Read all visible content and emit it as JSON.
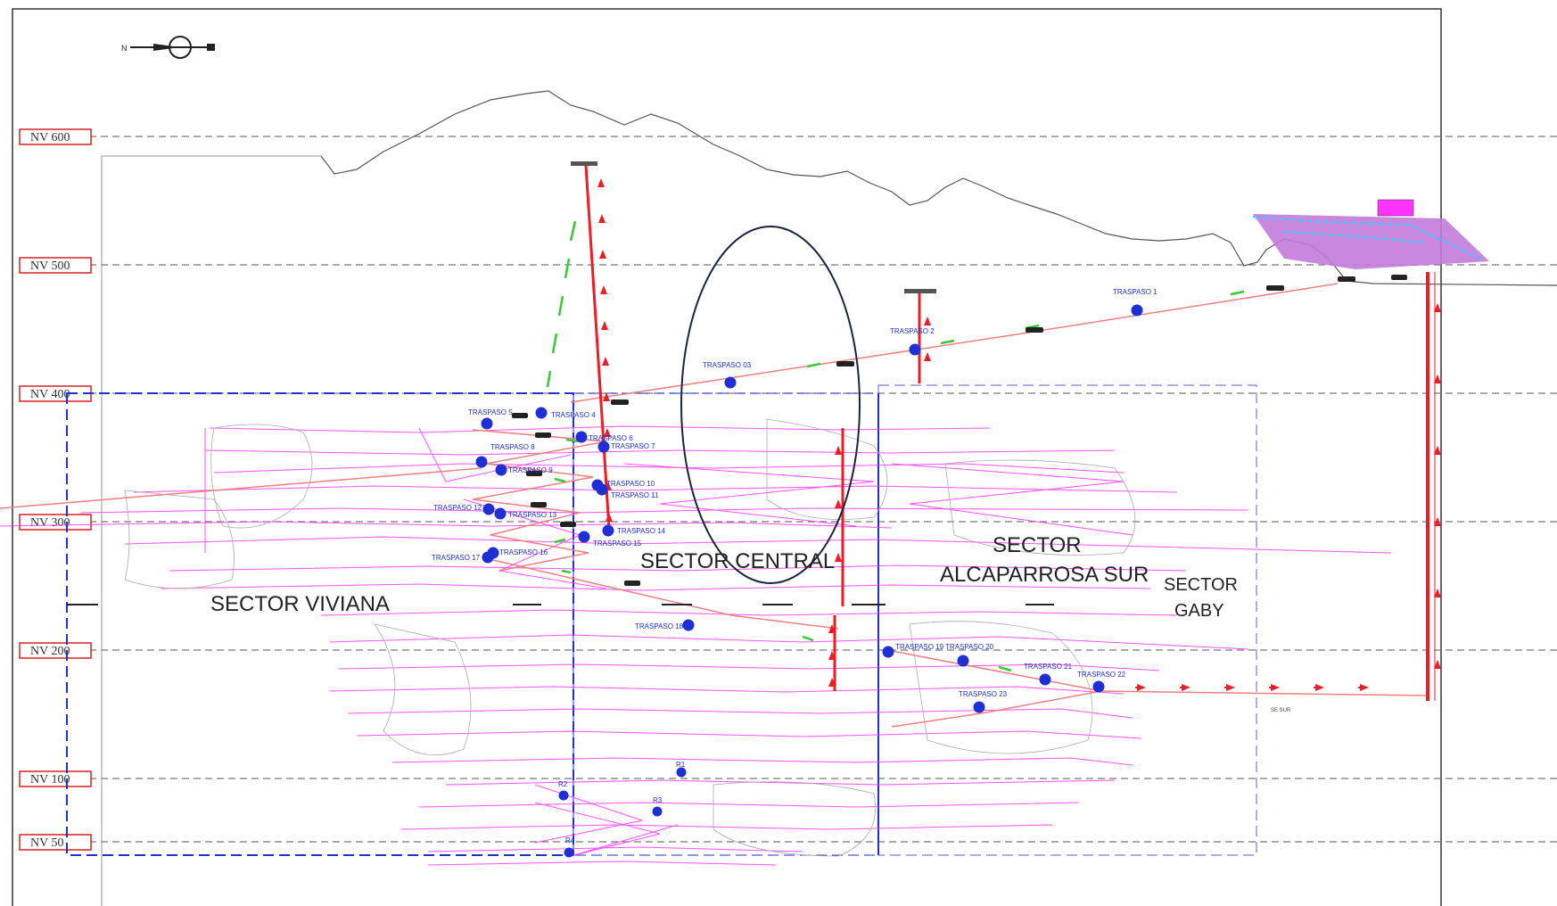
{
  "levels": [
    {
      "label": "NV 600"
    },
    {
      "label": "NV 500"
    },
    {
      "label": "NV 400"
    },
    {
      "label": "NV 300"
    },
    {
      "label": "NV 200"
    },
    {
      "label": "NV 100"
    },
    {
      "label": "NV 50"
    }
  ],
  "sectors": {
    "viviana": "SECTOR VIVIANA",
    "central": "SECTOR CENTRAL",
    "alcaparrosa_line1": "SECTOR",
    "alcaparrosa_line2": "ALCAPARROSA SUR",
    "gaby_line1": "SECTOR",
    "gaby_line2": "GABY"
  },
  "traspasos": {
    "t1": "TRASPASO 1",
    "t2": "TRASPASO 2",
    "t3": "TRASPASO  03",
    "t4": "TRASPASO 4",
    "t5": "TRASPASO 5",
    "t6": "TRASPASO 6",
    "t7": "TRASPASO 7",
    "t8": "TRASPASO 8",
    "t9": "TRASPASO 9",
    "t10": "TRASPASO 10",
    "t11": "TRASPASO 11",
    "t12": "TRASPASO 12",
    "t13": "TRASPASO 13",
    "t14": "TRASPASO 14",
    "t15": "TRASPASO 15",
    "t16": "TRASPASO 16",
    "t17": "TRASPASO 17",
    "t18": "TRASPASO 18",
    "t19": "TRASPASO 19",
    "t20": "TRASPASO 20",
    "t21": "TRASPASO 21",
    "t22": "TRASPASO 22",
    "t23": "TRASPASO 23"
  },
  "raises": {
    "r1": "R1",
    "r2": "R2",
    "r3": "R3",
    "r4": "R4"
  },
  "misc": {
    "north": "N",
    "se_sur": "SE SUR"
  },
  "colors": {
    "level_box": "#d62020",
    "sector_box": "#1f2fd6",
    "workings": "#ff33ff",
    "ramp": "#f08080",
    "shaft": "#ee1c24",
    "ventilation": "#33cc33",
    "traspaso_dot": "#1f2fd6",
    "surface_plant": "#c27bd9"
  },
  "icons": [
    "north-arrow-icon",
    "truck-icon",
    "headframe-icon",
    "flow-arrow-icon"
  ]
}
